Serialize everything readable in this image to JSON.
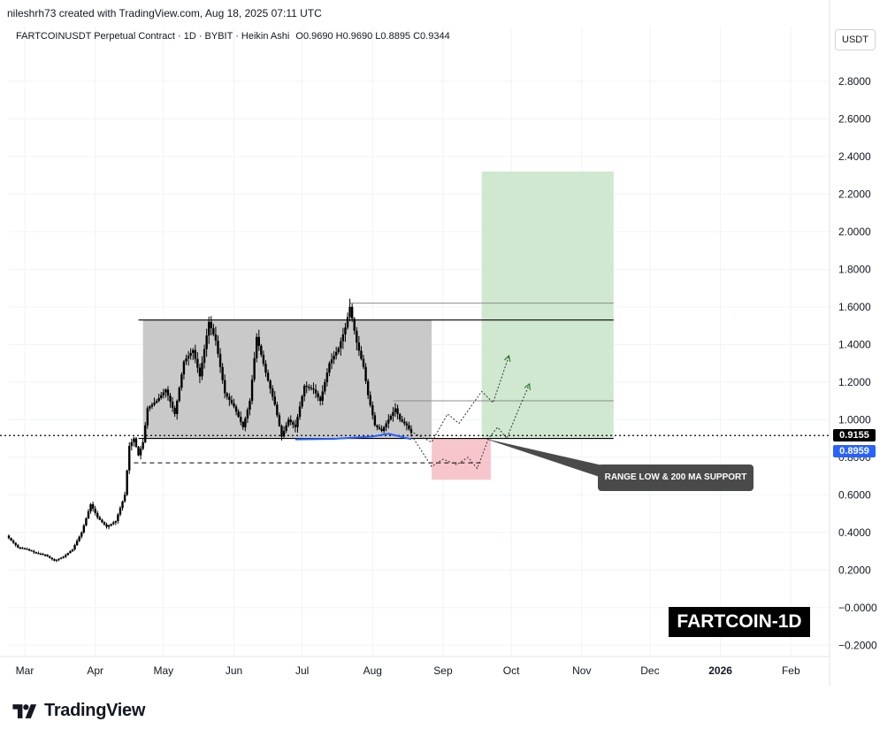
{
  "header": {
    "credit": "nileshrh73 created with TradingView.com, Aug 18, 2025 07:11 UTC",
    "symbol": "FARTCOINUSDT Perpetual Contract · 1D · BYBIT · Heikin Ashi",
    "ohlc": "O0.9690  H0.9690  L0.8895  C0.9344"
  },
  "currency": "USDT",
  "footer_brand": "TradingView",
  "watermark": "FARTCOIN-1D",
  "callout": "RANGE LOW & 200 MA SUPPORT",
  "last_price": "0.9155",
  "ma_price": "0.8959",
  "colors": {
    "candle": "#000000",
    "ma_line": "#2962ff",
    "range_box": "#c9c9c9",
    "target_zone": "#cfe8cf",
    "stop_zone": "#f7c6cc",
    "projection_green": "#2e7d32"
  },
  "chart_data": {
    "type": "candlestick",
    "style": "Heikin Ashi",
    "y_ticks": [
      "2.8000",
      "2.6000",
      "2.4000",
      "2.2000",
      "2.0000",
      "1.8000",
      "1.6000",
      "1.4000",
      "1.2000",
      "1.0000",
      "0.8000",
      "0.6000",
      "0.4000",
      "0.2000",
      "−0.0000",
      "−0.2000"
    ],
    "y_tick_values": [
      2.8,
      2.6,
      2.4,
      2.2,
      2.0,
      1.8,
      1.6,
      1.4,
      1.2,
      1.0,
      0.8,
      0.6,
      0.4,
      0.2,
      0,
      -0.2
    ],
    "x_ticks": [
      "Mar",
      "Apr",
      "May",
      "Jun",
      "Jul",
      "Aug",
      "Sep",
      "Oct",
      "Nov",
      "Dec",
      "2026",
      "Feb"
    ],
    "x_tick_dates": [
      "2025-03-01",
      "2025-04-01",
      "2025-05-01",
      "2025-06-01",
      "2025-07-01",
      "2025-08-01",
      "2025-09-01",
      "2025-10-01",
      "2025-11-01",
      "2025-12-01",
      "2026-01-01",
      "2026-02-01"
    ],
    "ylim": [
      -0.26,
      2.95
    ],
    "xlim": [
      "2025-02-22",
      "2026-02-18"
    ],
    "price_path": [
      [
        "2025-02-22",
        0.37
      ],
      [
        "2025-02-26",
        0.32
      ],
      [
        "2025-03-02",
        0.31
      ],
      [
        "2025-03-06",
        0.29
      ],
      [
        "2025-03-10",
        0.28
      ],
      [
        "2025-03-14",
        0.25
      ],
      [
        "2025-03-18",
        0.27
      ],
      [
        "2025-03-22",
        0.31
      ],
      [
        "2025-03-26",
        0.4
      ],
      [
        "2025-03-30",
        0.55
      ],
      [
        "2025-04-02",
        0.48
      ],
      [
        "2025-04-06",
        0.43
      ],
      [
        "2025-04-10",
        0.46
      ],
      [
        "2025-04-14",
        0.6
      ],
      [
        "2025-04-16",
        0.86
      ],
      [
        "2025-04-18",
        0.9
      ],
      [
        "2025-04-20",
        0.81
      ],
      [
        "2025-04-22",
        0.88
      ],
      [
        "2025-04-24",
        1.06
      ],
      [
        "2025-04-28",
        1.1
      ],
      [
        "2025-05-02",
        1.16
      ],
      [
        "2025-05-06",
        1.03
      ],
      [
        "2025-05-10",
        1.31
      ],
      [
        "2025-05-14",
        1.37
      ],
      [
        "2025-05-17",
        1.23
      ],
      [
        "2025-05-21",
        1.52
      ],
      [
        "2025-05-24",
        1.42
      ],
      [
        "2025-05-28",
        1.14
      ],
      [
        "2025-06-01",
        1.07
      ],
      [
        "2025-06-05",
        0.96
      ],
      [
        "2025-06-08",
        1.1
      ],
      [
        "2025-06-11",
        1.44
      ],
      [
        "2025-06-15",
        1.25
      ],
      [
        "2025-06-19",
        1.08
      ],
      [
        "2025-06-22",
        0.91
      ],
      [
        "2025-06-25",
        1.0
      ],
      [
        "2025-06-28",
        0.96
      ],
      [
        "2025-07-02",
        1.18
      ],
      [
        "2025-07-06",
        1.16
      ],
      [
        "2025-07-09",
        1.1
      ],
      [
        "2025-07-13",
        1.3
      ],
      [
        "2025-07-17",
        1.38
      ],
      [
        "2025-07-20",
        1.49
      ],
      [
        "2025-07-22",
        1.6
      ],
      [
        "2025-07-25",
        1.41
      ],
      [
        "2025-07-28",
        1.28
      ],
      [
        "2025-07-30",
        1.13
      ],
      [
        "2025-08-02",
        0.97
      ],
      [
        "2025-08-05",
        0.94
      ],
      [
        "2025-08-08",
        1.0
      ],
      [
        "2025-08-11",
        1.06
      ],
      [
        "2025-08-13",
        1.0
      ],
      [
        "2025-08-16",
        0.97
      ],
      [
        "2025-08-18",
        0.93
      ]
    ],
    "ma200_path": [
      [
        "2025-06-28",
        0.895
      ],
      [
        "2025-07-15",
        0.898
      ],
      [
        "2025-08-01",
        0.91
      ],
      [
        "2025-08-08",
        0.925
      ],
      [
        "2025-08-18",
        0.896
      ]
    ],
    "last_price": 0.9155,
    "ma200": 0.8959,
    "annotations": {
      "range_box": {
        "x": [
          "2025-04-22",
          "2025-08-27"
        ],
        "y": [
          0.9,
          1.53
        ]
      },
      "range_top_line": {
        "x": [
          "2025-04-20",
          "2025-11-15"
        ],
        "y": 1.53
      },
      "high_line": {
        "x": [
          "2025-07-22",
          "2025-11-15"
        ],
        "y": 1.62
      },
      "mid_line": {
        "x": [
          "2025-08-10",
          "2025-11-15"
        ],
        "y": 1.1
      },
      "range_low_line": {
        "x": [
          "2025-04-20",
          "2025-11-15"
        ],
        "y": 0.9
      },
      "dashed_support": {
        "x": [
          "2025-04-18",
          "2025-09-18"
        ],
        "y": 0.77
      },
      "stop_zone": {
        "x": [
          "2025-08-27",
          "2025-09-22"
        ],
        "y": [
          0.68,
          0.9
        ]
      },
      "target_zone": {
        "x": [
          "2025-09-18",
          "2025-11-15"
        ],
        "y": [
          0.9,
          2.32
        ]
      },
      "projection_black": [
        [
          "2025-08-19",
          0.93
        ],
        [
          "2025-08-27",
          0.88
        ],
        [
          "2025-09-03",
          1.03
        ],
        [
          "2025-09-08",
          0.98
        ],
        [
          "2025-09-18",
          1.15
        ],
        [
          "2025-09-23",
          1.09
        ],
        [
          "2025-09-30",
          1.34
        ]
      ],
      "projection_red": [
        [
          "2025-08-19",
          0.9
        ],
        [
          "2025-08-27",
          0.75
        ],
        [
          "2025-09-01",
          0.79
        ],
        [
          "2025-09-07",
          0.76
        ],
        [
          "2025-09-12",
          0.8
        ],
        [
          "2025-09-16",
          0.74
        ],
        [
          "2025-09-21",
          0.9
        ],
        [
          "2025-09-25",
          0.96
        ],
        [
          "2025-09-29",
          0.9
        ],
        [
          "2025-10-03",
          1.02
        ],
        [
          "2025-10-09",
          1.19
        ]
      ]
    }
  }
}
